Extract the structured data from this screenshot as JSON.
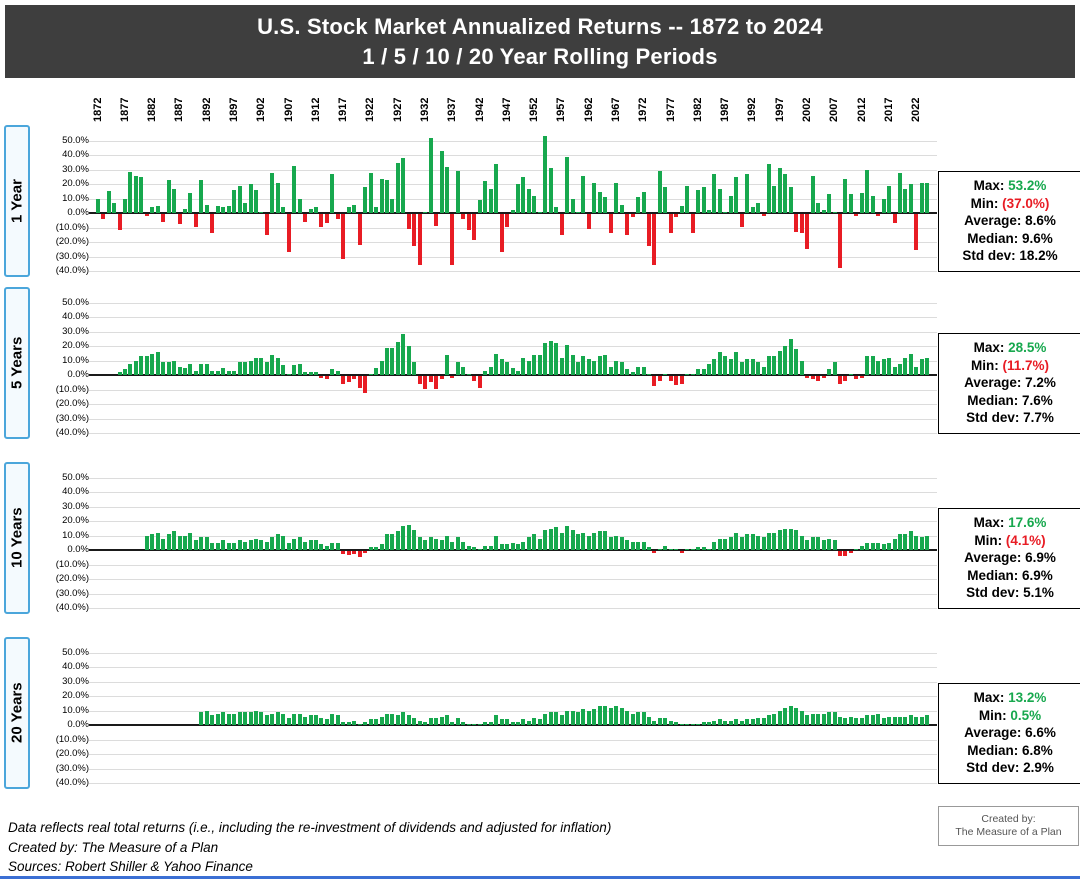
{
  "title": {
    "line1": "U.S. Stock Market Annualized Returns -- 1872 to 2024",
    "line2": "1 / 5 / 10 / 20 Year Rolling Periods"
  },
  "colors": {
    "positive_green": "#17A84E",
    "negative_red": "#E81C24",
    "title_bar_bg": "#3E3E3E",
    "panel_label_border": "#4BA6DB",
    "gridline": "#DCDCDC"
  },
  "chart_data": {
    "type": "bar",
    "x_range": [
      1872,
      2024
    ],
    "ylim_pct": [
      -40,
      50
    ],
    "grid": true,
    "unit": "annualized real total return, %",
    "x_tick_labels": [
      "1872",
      "1877",
      "1882",
      "1887",
      "1892",
      "1897",
      "1902",
      "1907",
      "1912",
      "1917",
      "1922",
      "1927",
      "1932",
      "1937",
      "1942",
      "1947",
      "1952",
      "1957",
      "1962",
      "1967",
      "1972",
      "1977",
      "1982",
      "1987",
      "1992",
      "1997",
      "2002",
      "2007",
      "2012",
      "2017",
      "2022"
    ],
    "y_tick_labels": [
      "50.0%",
      "40.0%",
      "30.0%",
      "20.0%",
      "10.0%",
      "0.0%",
      "(10.0%)",
      "(20.0%)",
      "(30.0%)",
      "(40.0%)"
    ],
    "panels": [
      {
        "label": "1 Year",
        "start_year": 1872,
        "values": [
          9.5,
          -3,
          15.5,
          7,
          -11,
          10,
          28.5,
          26,
          25,
          -1,
          4,
          5,
          -5,
          23,
          17,
          -7,
          3,
          14,
          -9,
          23,
          6,
          -13,
          5,
          4,
          5,
          16,
          19,
          7,
          20,
          16,
          1,
          -14,
          28,
          21,
          4,
          -26,
          33,
          10,
          -5,
          3,
          4,
          -9,
          -6,
          27,
          -3,
          -31,
          4,
          6,
          -21,
          18,
          28,
          4,
          24,
          23,
          10,
          35,
          38,
          -10,
          -22,
          -35,
          0.5,
          52,
          -8,
          43,
          32,
          -35,
          29,
          -3,
          -11,
          -18,
          9,
          22,
          17,
          34,
          -26,
          -9,
          2,
          20,
          25,
          17,
          12,
          0.5,
          53.2,
          31,
          4,
          -14,
          39,
          10,
          0.5,
          26,
          -10,
          21,
          15,
          11,
          -13,
          21,
          6,
          -14,
          -2,
          11,
          15,
          -22,
          -35,
          29,
          18,
          -13,
          -2,
          5,
          19,
          -13,
          16,
          18,
          2,
          27,
          17,
          1,
          12,
          25,
          -9,
          27,
          4,
          7,
          -1,
          34,
          19,
          31,
          27,
          18,
          -12,
          -13,
          -24,
          26,
          7,
          2,
          13,
          1,
          -37,
          24,
          13,
          -1,
          14,
          30,
          12,
          -1,
          10,
          19,
          -6,
          28,
          17,
          20,
          -25,
          21,
          21
        ],
        "stats": [
          {
            "label": "Max:",
            "value": "53.2%",
            "color": "green"
          },
          {
            "label": "Min:",
            "value": "(37.0%)",
            "color": "red"
          },
          {
            "label": "Average:",
            "value": "8.6%",
            "color": "black"
          },
          {
            "label": "Median:",
            "value": "9.6%",
            "color": "black"
          },
          {
            "label": "Std dev:",
            "value": "18.2%",
            "color": "black"
          }
        ]
      },
      {
        "label": "5 Years",
        "start_year": 1876,
        "values": [
          2,
          4,
          8,
          10,
          13,
          13,
          15,
          16,
          9,
          9,
          10,
          6,
          5,
          8,
          3,
          8,
          8,
          3,
          3,
          5,
          3,
          3,
          9,
          9,
          10,
          12,
          12,
          9,
          14,
          12,
          7,
          1,
          7,
          8,
          2,
          2,
          2,
          -1,
          -2,
          4,
          3,
          -5,
          -4,
          -2,
          -8,
          -11.7,
          1,
          5,
          10,
          19,
          19,
          23,
          28.5,
          20,
          9,
          -5,
          -9,
          -4,
          -9,
          -2,
          14,
          -1,
          9,
          6,
          1,
          -3,
          -8,
          3,
          6,
          15,
          11,
          9,
          5,
          3,
          12,
          10,
          14,
          14,
          22,
          24,
          22,
          12,
          21,
          14,
          9,
          13,
          11,
          10,
          13,
          14,
          6,
          10,
          9,
          4,
          2,
          6,
          6,
          0.5,
          -7,
          -3,
          0.5,
          -3,
          -6,
          -5,
          1,
          1,
          4,
          4,
          8,
          11,
          16,
          13,
          11,
          16,
          9,
          11,
          11,
          9,
          6,
          13,
          13,
          17,
          20,
          25,
          18,
          10,
          -1,
          -2,
          -3,
          -1,
          4,
          9,
          -5,
          -3,
          0.5,
          -2,
          -1,
          13,
          13,
          10,
          11,
          12,
          6,
          8,
          12,
          15,
          6,
          11,
          12
        ],
        "stats": [
          {
            "label": "Max:",
            "value": "28.5%",
            "color": "green"
          },
          {
            "label": "Min:",
            "value": "(11.7%)",
            "color": "red"
          },
          {
            "label": "Average:",
            "value": "7.2%",
            "color": "black"
          },
          {
            "label": "Median:",
            "value": "7.6%",
            "color": "black"
          },
          {
            "label": "Std dev:",
            "value": "7.7%",
            "color": "black"
          }
        ]
      },
      {
        "label": "10 Years",
        "start_year": 1881,
        "values": [
          10,
          11,
          12,
          8,
          11,
          13,
          10,
          10,
          12,
          7,
          9,
          9,
          5,
          5,
          7,
          5,
          5,
          7,
          6,
          7,
          8,
          7,
          6,
          9,
          11,
          10,
          5,
          8,
          9,
          6,
          7,
          7,
          4,
          3,
          5,
          5,
          -2,
          -2.5,
          -2,
          -4.1,
          -1.5,
          2,
          2,
          4,
          11,
          11,
          13,
          17,
          17.6,
          14,
          9,
          7,
          9,
          8,
          7,
          10,
          6,
          9,
          6,
          3,
          2,
          1,
          3,
          3,
          10,
          4,
          4,
          5,
          4,
          6,
          9,
          11,
          8,
          14,
          15,
          16,
          12,
          17,
          14,
          11,
          12,
          10,
          12,
          13,
          13,
          9,
          10,
          9,
          7,
          6,
          6,
          6,
          2,
          -1,
          1,
          3,
          1,
          0.5,
          -1,
          1,
          1,
          2,
          2,
          1,
          6,
          8,
          8,
          9,
          12,
          9,
          11,
          11,
          10,
          9,
          12,
          12,
          14,
          15,
          15,
          14,
          10,
          7,
          9,
          9,
          7,
          8,
          7,
          -3,
          -3.5,
          -1,
          0.5,
          3,
          5,
          5,
          5,
          4,
          5,
          8,
          11,
          11,
          13,
          10,
          9,
          10
        ],
        "stats": [
          {
            "label": "Max:",
            "value": "17.6%",
            "color": "green"
          },
          {
            "label": "Min:",
            "value": "(4.1%)",
            "color": "red"
          },
          {
            "label": "Average:",
            "value": "6.9%",
            "color": "black"
          },
          {
            "label": "Median:",
            "value": "6.9%",
            "color": "black"
          },
          {
            "label": "Std dev:",
            "value": "5.1%",
            "color": "black"
          }
        ]
      },
      {
        "label": "20 Years",
        "start_year": 1891,
        "values": [
          9,
          10,
          7,
          8,
          9,
          8,
          8,
          9,
          9,
          9,
          10,
          9,
          7,
          8,
          9,
          8,
          5,
          8,
          8,
          6,
          7,
          7,
          5,
          4,
          8,
          7,
          2,
          2,
          3,
          1,
          2,
          4,
          4,
          6,
          8,
          8,
          7,
          9,
          7,
          5,
          3,
          2,
          5,
          5,
          6,
          7,
          2,
          5,
          2,
          1,
          1,
          1,
          2,
          2,
          7,
          4,
          4,
          2,
          2,
          4,
          3,
          5,
          4,
          8,
          9,
          9,
          7,
          10,
          10,
          9,
          11,
          10,
          11,
          13,
          13,
          12,
          13,
          12,
          10,
          8,
          9,
          9,
          6,
          3,
          5,
          5,
          3,
          2,
          1,
          1,
          1,
          0.5,
          2,
          2,
          3,
          4,
          3,
          3,
          4,
          3,
          4,
          4,
          5,
          5,
          7,
          8,
          10,
          12,
          13.2,
          12,
          10,
          7,
          8,
          8,
          8,
          9,
          9,
          6,
          5,
          6,
          5,
          5,
          7,
          7,
          8,
          5,
          6,
          6,
          6,
          6,
          7,
          6,
          6,
          7
        ],
        "stats": [
          {
            "label": "Max:",
            "value": "13.2%",
            "color": "green"
          },
          {
            "label": "Min:",
            "value": "0.5%",
            "color": "green"
          },
          {
            "label": "Average:",
            "value": "6.6%",
            "color": "black"
          },
          {
            "label": "Median:",
            "value": "6.8%",
            "color": "black"
          },
          {
            "label": "Std dev:",
            "value": "2.9%",
            "color": "black"
          }
        ]
      }
    ]
  },
  "footer": {
    "line1": "Data reflects real total returns (i.e., including the re-investment of dividends and adjusted for inflation)",
    "line2": "Created by: The Measure of a Plan",
    "line3": "Sources: Robert Shiller & Yahoo Finance"
  },
  "credit_box": {
    "line1": "Created by:",
    "line2": "The Measure of a Plan"
  }
}
